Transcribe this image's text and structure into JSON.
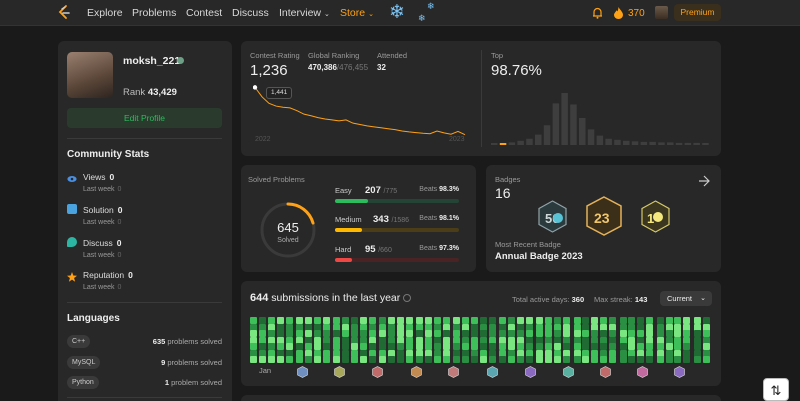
{
  "nav": {
    "items": [
      "Explore",
      "Problems",
      "Contest",
      "Discuss",
      "Interview",
      "Store"
    ],
    "coins": "370",
    "premium": "Premium"
  },
  "profile": {
    "username": "moksh_221",
    "rank_label": "Rank",
    "rank": "43,429",
    "edit_button": "Edit Profile"
  },
  "community": {
    "title": "Community Stats",
    "last_week_label": "Last week",
    "stats": [
      {
        "label": "Views",
        "value": "0",
        "last_week": "0",
        "color": "#4a90e2"
      },
      {
        "label": "Solution",
        "value": "0",
        "last_week": "0",
        "color": "#4aa3df"
      },
      {
        "label": "Discuss",
        "value": "0",
        "last_week": "0",
        "color": "#2db5a3"
      },
      {
        "label": "Reputation",
        "value": "0",
        "last_week": "0",
        "color": "#ffa116"
      }
    ]
  },
  "languages": {
    "title": "Languages",
    "items": [
      {
        "name": "C++",
        "count": "635",
        "suffix": "problems solved"
      },
      {
        "name": "MySQL",
        "count": "9",
        "suffix": "problems solved"
      },
      {
        "name": "Python",
        "count": "1",
        "suffix": "problem solved"
      }
    ]
  },
  "contest": {
    "rating_label": "Contest Rating",
    "rating": "1,236",
    "ranking_label": "Global Ranking",
    "ranking": "470,386",
    "ranking_total": "/476,455",
    "attended_label": "Attended",
    "attended": "32",
    "tooltip": "1,441",
    "year_start": "2022",
    "year_end": "2023",
    "top_label": "Top",
    "top": "98.76%"
  },
  "chart_data": [
    {
      "type": "line",
      "title": "Contest Rating",
      "x_labels": [
        "2022",
        "2023"
      ],
      "values": [
        1441,
        1400,
        1372,
        1360,
        1355,
        1352,
        1340,
        1325,
        1318,
        1310,
        1304,
        1300,
        1296,
        1300,
        1286,
        1280,
        1274,
        1270,
        1266,
        1262,
        1258,
        1252,
        1248,
        1245,
        1242,
        1240,
        1252,
        1244,
        1238,
        1250,
        1236
      ]
    },
    {
      "type": "bar",
      "title": "Top",
      "values": [
        2,
        3,
        5,
        8,
        12,
        20,
        38,
        80,
        100,
        78,
        52,
        30,
        18,
        12,
        10,
        8,
        7,
        6,
        6,
        5,
        5,
        4,
        4,
        4,
        3
      ],
      "highlight_index": 1
    }
  ],
  "solved": {
    "title": "Solved Problems",
    "total": "645",
    "total_label": "Solved",
    "beats_label": "Beats",
    "rows": [
      {
        "name": "Easy",
        "solved": "207",
        "total": "/775",
        "beats": "98.3%",
        "pct": 0.27,
        "color": "#2cbb5d",
        "track": "#244536"
      },
      {
        "name": "Medium",
        "solved": "343",
        "total": "/1586",
        "beats": "98.1%",
        "pct": 0.22,
        "color": "#ffb800",
        "track": "#4a3d18"
      },
      {
        "name": "Hard",
        "solved": "95",
        "total": "/660",
        "beats": "97.3%",
        "pct": 0.14,
        "color": "#ef4743",
        "track": "#4a2424"
      }
    ]
  },
  "badges": {
    "title": "Badges",
    "count": "16",
    "recent_label": "Most Recent Badge",
    "recent": "Annual Badge 2023"
  },
  "submissions": {
    "count": "644",
    "label": "submissions in the last year",
    "active_days_label": "Total active days:",
    "active_days": "360",
    "streak_label": "Max streak:",
    "streak": "143",
    "selector": "Current",
    "month": "Jan"
  }
}
